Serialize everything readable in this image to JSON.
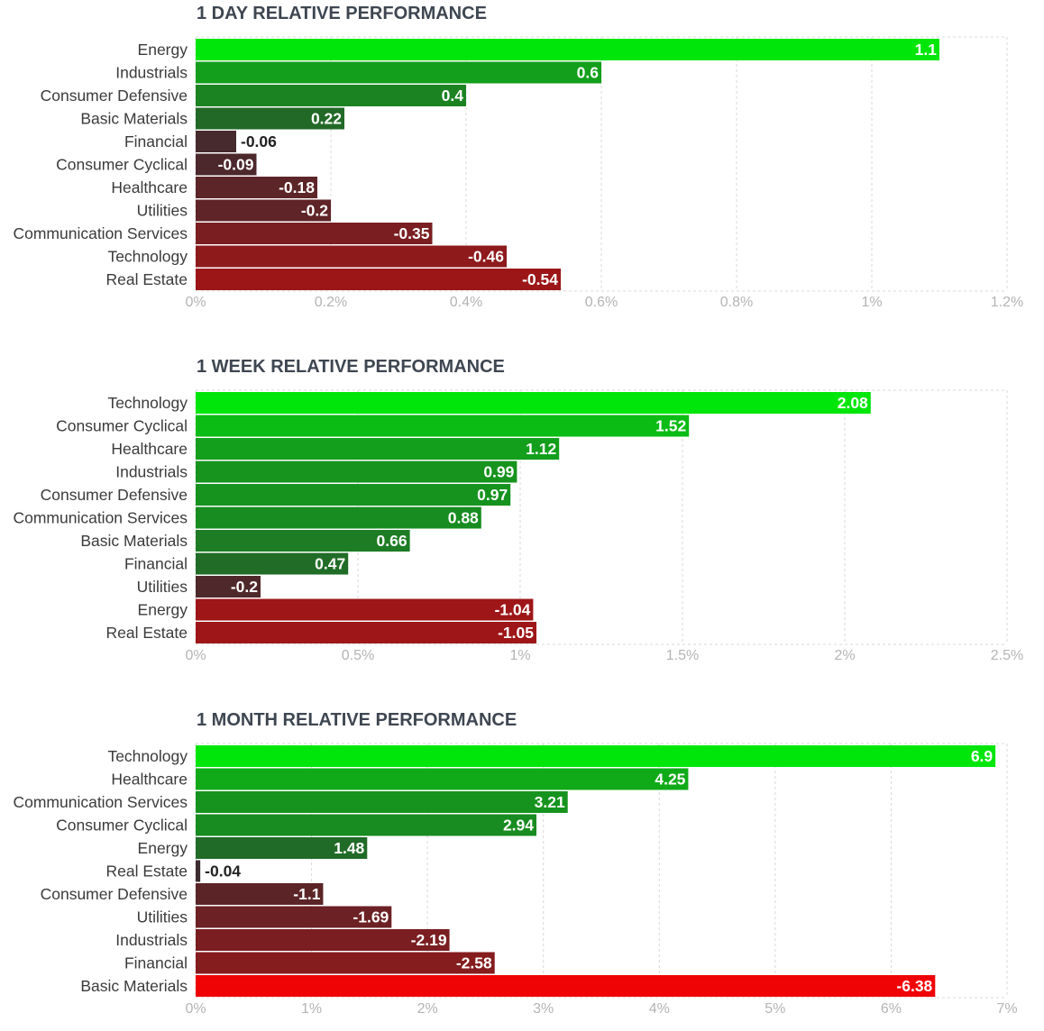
{
  "chart_data": [
    {
      "type": "bar",
      "orientation": "horizontal",
      "title": "1 DAY RELATIVE PERFORMANCE",
      "categories": [
        "Energy",
        "Industrials",
        "Consumer Defensive",
        "Basic Materials",
        "Financial",
        "Consumer Cyclical",
        "Healthcare",
        "Utilities",
        "Communication Services",
        "Technology",
        "Real Estate"
      ],
      "values": [
        1.1,
        0.6,
        0.4,
        0.22,
        -0.06,
        -0.09,
        -0.18,
        -0.2,
        -0.35,
        -0.46,
        -0.54
      ],
      "value_labels": [
        "1.1",
        "0.6",
        "0.4",
        "0.22",
        "-0.06",
        "-0.09",
        "-0.18",
        "-0.2",
        "-0.35",
        "-0.46",
        "-0.54"
      ],
      "bars_show": "absolute value",
      "xlim": [
        0,
        1.2
      ],
      "xticks": [
        0,
        0.2,
        0.4,
        0.6,
        0.8,
        1,
        1.2
      ],
      "xtick_labels": [
        "0%",
        "0.2%",
        "0.4%",
        "0.6%",
        "0.8%",
        "1%",
        "1.2%"
      ],
      "grid": true
    },
    {
      "type": "bar",
      "orientation": "horizontal",
      "title": "1 WEEK RELATIVE PERFORMANCE",
      "categories": [
        "Technology",
        "Consumer Cyclical",
        "Healthcare",
        "Industrials",
        "Consumer Defensive",
        "Communication Services",
        "Basic Materials",
        "Financial",
        "Utilities",
        "Energy",
        "Real Estate"
      ],
      "values": [
        2.08,
        1.52,
        1.12,
        0.99,
        0.97,
        0.88,
        0.66,
        0.47,
        -0.2,
        -1.04,
        -1.05
      ],
      "value_labels": [
        "2.08",
        "1.52",
        "1.12",
        "0.99",
        "0.97",
        "0.88",
        "0.66",
        "0.47",
        "-0.2",
        "-1.04",
        "-1.05"
      ],
      "bars_show": "absolute value",
      "xlim": [
        0,
        2.5
      ],
      "xticks": [
        0,
        0.5,
        1,
        1.5,
        2,
        2.5
      ],
      "xtick_labels": [
        "0%",
        "0.5%",
        "1%",
        "1.5%",
        "2%",
        "2.5%"
      ],
      "grid": true
    },
    {
      "type": "bar",
      "orientation": "horizontal",
      "title": "1 MONTH RELATIVE PERFORMANCE",
      "categories": [
        "Technology",
        "Healthcare",
        "Communication Services",
        "Consumer Cyclical",
        "Energy",
        "Real Estate",
        "Consumer Defensive",
        "Utilities",
        "Industrials",
        "Financial",
        "Basic Materials"
      ],
      "values": [
        6.9,
        4.25,
        3.21,
        2.94,
        1.48,
        -0.04,
        -1.1,
        -1.69,
        -2.19,
        -2.58,
        -6.38
      ],
      "value_labels": [
        "6.9",
        "4.25",
        "3.21",
        "2.94",
        "1.48",
        "-0.04",
        "-1.1",
        "-1.69",
        "-2.19",
        "-2.58",
        "-6.38"
      ],
      "bars_show": "absolute value",
      "xlim": [
        0,
        7
      ],
      "xticks": [
        0,
        1,
        2,
        3,
        4,
        5,
        6,
        7
      ],
      "xtick_labels": [
        "0%",
        "1%",
        "2%",
        "3%",
        "4%",
        "5%",
        "6%",
        "7%"
      ],
      "grid": true
    }
  ],
  "colors": {
    "positive_max": "#00e60a",
    "positive_min": "#2a4a30",
    "negative_min": "#3c2c30",
    "negative_max": "#ff0000",
    "gridline": "#d8d8d8",
    "tick_text": "#b4b4b4",
    "label_text": "#3b3b3b",
    "title_text": "#3e4651"
  }
}
